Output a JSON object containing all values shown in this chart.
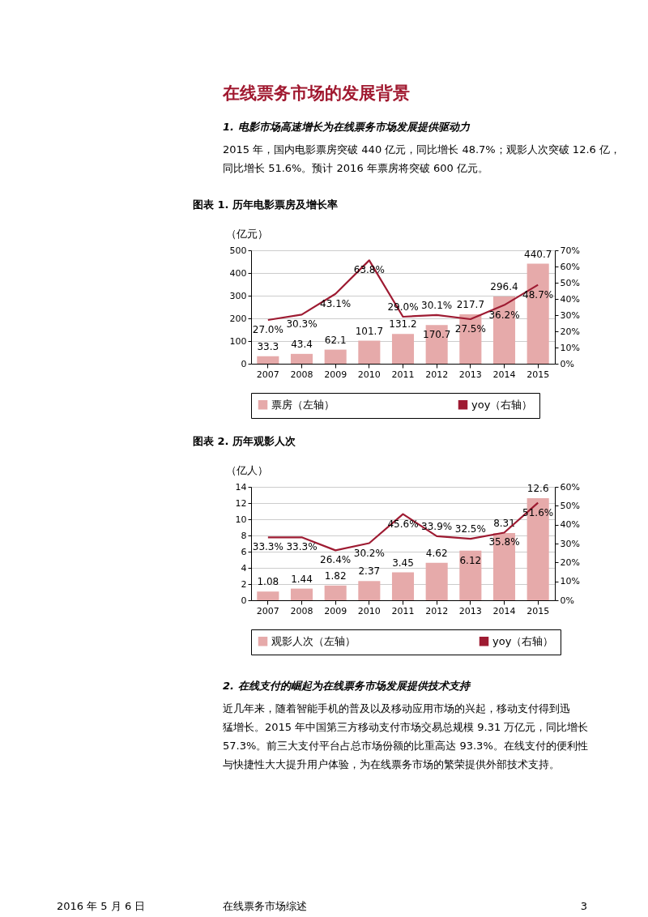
{
  "chart_data": [
    {
      "type": "bar",
      "title": "图表 1. 历年电影票房及增长率",
      "ylabel": "（亿元）",
      "annotations": [
        "在线票务市场的发展背景",
        "1.    电影市场高速增长为在线票务市场发展提供驱动力",
        "2015 年，国内电影票房突破 440 亿元，同比增长 48.7%；观影人次突破 12.6 亿，",
        "同比增长 51.6%。预计 2016 年票房将突破 600 亿元。"
      ],
      "categories": [
        "2007",
        "2008",
        "2009",
        "2010",
        "2011",
        "2012",
        "2013",
        "2014",
        "2015"
      ],
      "series": [
        {
          "name": "票房（左轴）",
          "axis": "y",
          "color": "#e6aaaa",
          "values": [
            33.3,
            43.4,
            62.1,
            101.7,
            131.2,
            170.7,
            217.7,
            296.4,
            440.7
          ],
          "value_labels": [
            "33.3",
            "43.4",
            "62.1",
            "101.7",
            "131.2",
            "170.7",
            "217.7",
            "296.4",
            "440.7"
          ]
        },
        {
          "name": "yoy（右轴）",
          "type": "line",
          "axis": "y2",
          "color": "#9e1b32",
          "values": [
            27.0,
            30.3,
            43.1,
            63.8,
            29.0,
            30.1,
            27.5,
            36.2,
            48.7
          ],
          "value_labels": [
            "27.0%",
            "30.3%",
            "43.1%",
            "63.8%",
            "29.0%",
            "30.1%",
            "27.5%",
            "36.2%",
            "48.7%"
          ]
        }
      ],
      "ylim": [
        0,
        500
      ],
      "yticks": [
        0,
        100,
        200,
        300,
        400,
        500
      ],
      "y2lim": [
        0,
        70
      ],
      "y2ticks": [
        {
          "value": 0,
          "label": "0%"
        },
        {
          "value": 10,
          "label": "10%"
        },
        {
          "value": 20,
          "label": "20%"
        },
        {
          "value": 30,
          "label": "30%"
        },
        {
          "value": 40,
          "label": "40%"
        },
        {
          "value": 50,
          "label": "50%"
        },
        {
          "value": 60,
          "label": "60%"
        },
        {
          "value": 70,
          "label": "70%"
        }
      ],
      "grid": "y",
      "legend": "bottom",
      "marker": "none",
      "line_style": "solid"
    },
    {
      "type": "bar",
      "title": "图表 2. 历年观影人次",
      "ylabel": "（亿人）",
      "annotations": [
        "2.    在线支付的崛起为在线票务市场发展提供技术支持",
        "近几年来，随着智能手机的普及以及移动应用市场的兴起，移动支付得到迅",
        "猛增长。2015 年中国第三方移动支付市场交易总规模 9.31 万亿元，同比增长",
        "57.3%。前三大支付平台占总市场份额的比重高达 93.3%。在线支付的便利性",
        "与快捷性大大提升用户体验，为在线票务市场的繁荣提供外部技术支持。",
        "2016 年 5 月 6 日",
        "在线票务市场综述",
        "3"
      ],
      "categories": [
        "2007",
        "2008",
        "2009",
        "2010",
        "2011",
        "2012",
        "2013",
        "2014",
        "2015"
      ],
      "series": [
        {
          "name": "观影人次（左轴）",
          "axis": "y",
          "color": "#e6aaaa",
          "values": [
            1.08,
            1.44,
            1.82,
            2.37,
            3.45,
            4.62,
            6.12,
            8.31,
            12.6
          ],
          "value_labels": [
            "1.08",
            "1.44",
            "1.82",
            "2.37",
            "3.45",
            "4.62",
            "6.12",
            "8.31",
            "12.6"
          ]
        },
        {
          "name": "yoy（右轴）",
          "type": "line",
          "axis": "y2",
          "color": "#9e1b32",
          "values": [
            33.3,
            33.3,
            26.4,
            30.2,
            45.6,
            33.9,
            32.5,
            35.8,
            51.6
          ],
          "value_labels": [
            "33.3%",
            "33.3%",
            "26.4%",
            "30.2%",
            "45.6%",
            "33.9%",
            "32.5%",
            "35.8%",
            "51.6%"
          ]
        }
      ],
      "ylim": [
        0,
        14
      ],
      "yticks": [
        0,
        2,
        4,
        6,
        8,
        10,
        12,
        14
      ],
      "y2lim": [
        0,
        60
      ],
      "y2ticks": [
        {
          "value": 0,
          "label": "0%"
        },
        {
          "value": 10,
          "label": "10%"
        },
        {
          "value": 20,
          "label": "20%"
        },
        {
          "value": 30,
          "label": "30%"
        },
        {
          "value": 40,
          "label": "40%"
        },
        {
          "value": 50,
          "label": "50%"
        },
        {
          "value": 60,
          "label": "60%"
        }
      ],
      "grid": "y",
      "legend": "bottom",
      "marker": "none",
      "line_style": "solid"
    }
  ]
}
